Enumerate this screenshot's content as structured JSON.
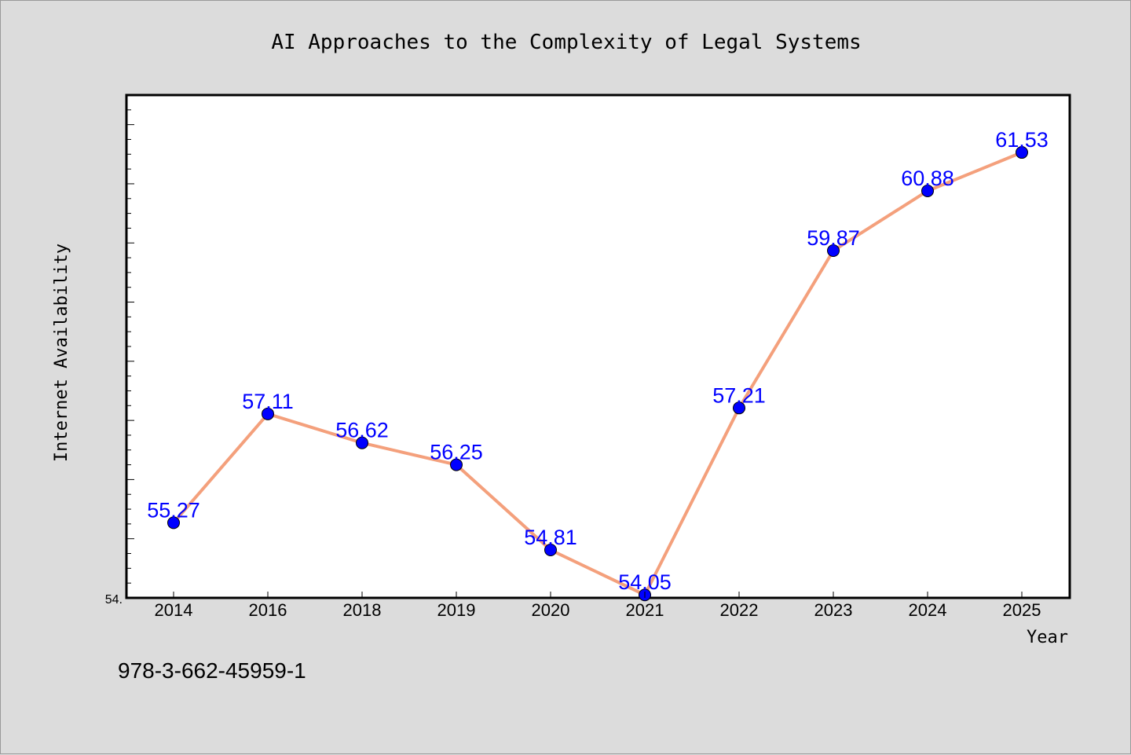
{
  "chart_data": {
    "type": "line",
    "title": "AI Approaches to the Complexity of Legal Systems",
    "xlabel": "Year",
    "ylabel": "Internet Availability",
    "categories": [
      "2014",
      "2016",
      "2018",
      "2019",
      "2020",
      "2021",
      "2022",
      "2023",
      "2024",
      "2025"
    ],
    "series": [
      {
        "values": [
          55.27,
          57.11,
          56.62,
          56.25,
          54.81,
          54.05,
          57.21,
          59.87,
          60.88,
          61.53
        ],
        "labels": [
          "55.27",
          "57.11",
          "56.62",
          "56.25",
          "54.81",
          "54.05",
          "57.21",
          "59.87",
          "60.88",
          "61.53"
        ]
      }
    ],
    "ylim": [
      54.0,
      62.5
    ],
    "ytick_label": "54.",
    "grid": false,
    "legend": "none",
    "line_color": "#f4a07c",
    "marker_color": "#0000ff",
    "label_color": "#0000ff"
  },
  "footer": {
    "note": "978-3-662-45959-1"
  }
}
